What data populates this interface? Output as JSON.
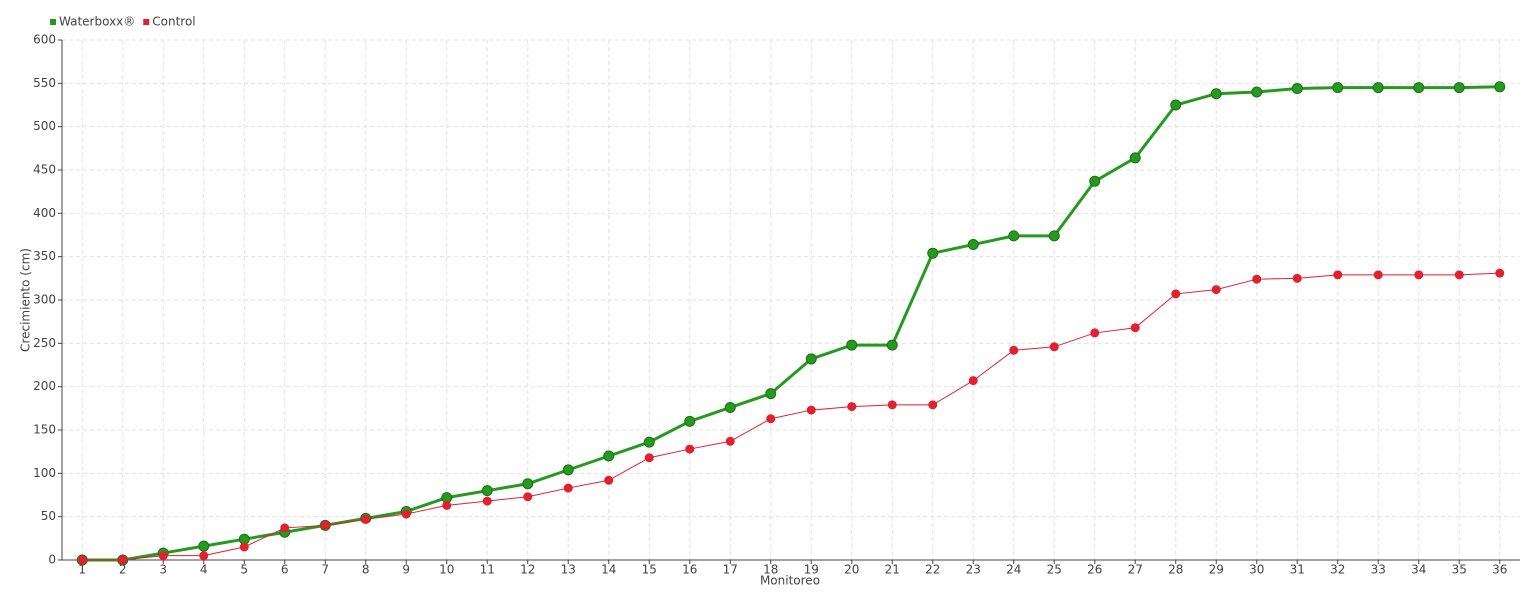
{
  "chart_data": {
    "type": "line",
    "xlabel": "Monitoreo",
    "ylabel": "Crecimiento (cm)",
    "categories": [
      "1",
      "2",
      "3",
      "4",
      "5",
      "6",
      "7",
      "8",
      "9",
      "10",
      "11",
      "12",
      "13",
      "14",
      "15",
      "16",
      "17",
      "18",
      "19",
      "20",
      "21",
      "22",
      "23",
      "24",
      "25",
      "26",
      "27",
      "28",
      "29",
      "30",
      "31",
      "32",
      "33",
      "34",
      "35",
      "36"
    ],
    "series": [
      {
        "name": "Waterboxx®",
        "color": "#259a1e",
        "values": [
          0,
          0,
          8,
          16,
          24,
          32,
          40,
          48,
          56,
          72,
          80,
          88,
          104,
          120,
          136,
          160,
          176,
          192,
          232,
          248,
          248,
          354,
          364,
          374,
          374,
          437,
          464,
          525,
          538,
          540,
          544,
          545,
          545,
          545,
          545,
          546
        ]
      },
      {
        "name": "Control",
        "color": "#e3202e",
        "values": [
          0,
          0,
          5,
          5,
          15,
          37,
          40,
          47,
          53,
          63,
          68,
          73,
          83,
          92,
          118,
          128,
          137,
          163,
          173,
          177,
          179,
          179,
          207,
          242,
          246,
          262,
          268,
          307,
          312,
          324,
          325,
          329,
          329,
          329,
          329,
          331
        ]
      }
    ],
    "ylim": [
      0,
      600
    ],
    "yticks": [
      0,
      50,
      100,
      150,
      200,
      250,
      300,
      350,
      400,
      450,
      500,
      550,
      600
    ],
    "grid": true,
    "legend": "top-left"
  }
}
